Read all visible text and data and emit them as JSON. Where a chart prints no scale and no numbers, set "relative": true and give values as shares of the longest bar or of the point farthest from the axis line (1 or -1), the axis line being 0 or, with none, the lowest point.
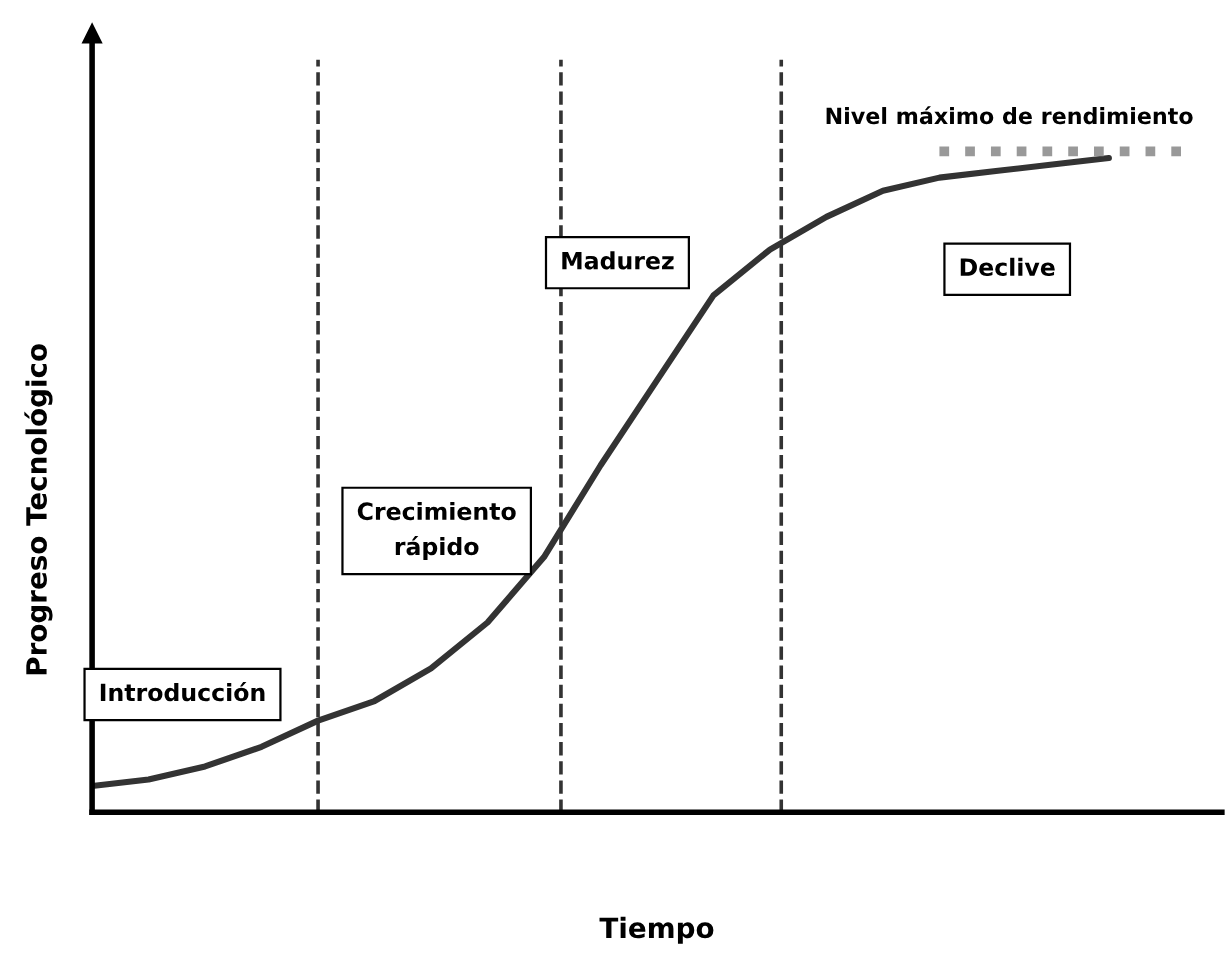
{
  "chart_data": {
    "type": "line",
    "relative": true,
    "xlabel": "Tiempo",
    "ylabel": "Progreso Tecnológico",
    "categories": [
      null,
      null,
      null,
      null,
      null,
      null,
      null,
      null,
      null,
      null,
      null,
      null,
      null,
      null,
      null,
      null,
      null,
      null,
      null,
      null,
      null
    ],
    "series": [
      {
        "color": "#333333",
        "values": [
          0.04,
          0.05,
          0.07,
          0.1,
          0.14,
          0.17,
          0.22,
          0.29,
          0.39,
          0.53,
          0.66,
          0.79,
          0.86,
          0.91,
          0.95,
          0.97,
          0.98,
          0.99,
          1.0,
          null,
          null
        ]
      }
    ],
    "ref_lines": [
      {
        "axis": "y",
        "value": 1.01,
        "label": "Nivel máximo de rendimiento",
        "color": "#999999",
        "line_style": "dotted"
      }
    ],
    "annotations": [
      "Introducción",
      "Crecimiento\nrápido",
      "Madurez",
      "Declive"
    ],
    "grid": false,
    "marker": "none",
    "line_style": "solid"
  }
}
